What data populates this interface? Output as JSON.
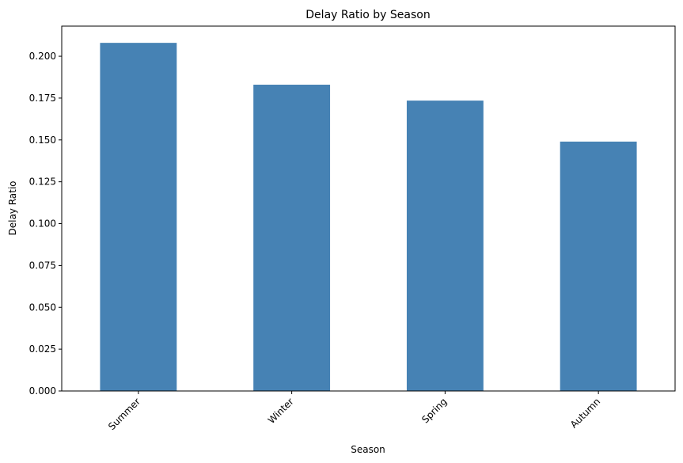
{
  "chart_data": {
    "type": "bar",
    "title": "Delay Ratio by Season",
    "xlabel": "Season",
    "ylabel": "Delay Ratio",
    "categories": [
      "Summer",
      "Winter",
      "Spring",
      "Autumn"
    ],
    "values": [
      0.208,
      0.183,
      0.1735,
      0.149
    ],
    "ylim": [
      0,
      0.218
    ],
    "yticks": [
      "0.000",
      "0.025",
      "0.050",
      "0.075",
      "0.100",
      "0.125",
      "0.150",
      "0.175",
      "0.200"
    ],
    "bar_color": "#4682b4",
    "grid": false,
    "legend": "none"
  }
}
